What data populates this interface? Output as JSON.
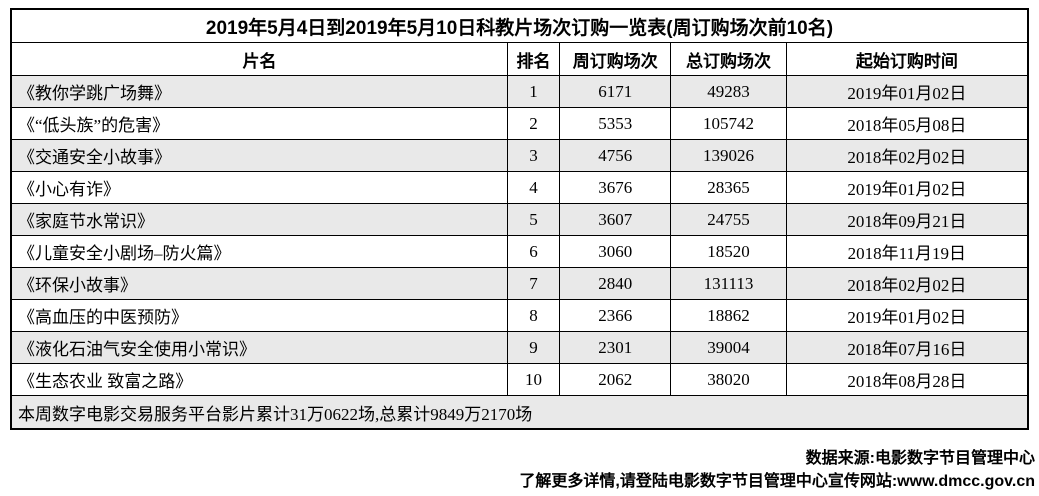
{
  "title": "2019年5月4日到2019年5月10日科教片场次订购一览表(周订购场次前10名)",
  "columns": [
    "片名",
    "排名",
    "周订购场次",
    "总订购场次",
    "起始订购时间"
  ],
  "rows": [
    {
      "name": "《教你学跳广场舞》",
      "rank": "1",
      "weekly": "6171",
      "total": "49283",
      "start": "2019年01月02日"
    },
    {
      "name": "《“低头族”的危害》",
      "rank": "2",
      "weekly": "5353",
      "total": "105742",
      "start": "2018年05月08日"
    },
    {
      "name": "《交通安全小故事》",
      "rank": "3",
      "weekly": "4756",
      "total": "139026",
      "start": "2018年02月02日"
    },
    {
      "name": "《小心有诈》",
      "rank": "4",
      "weekly": "3676",
      "total": "28365",
      "start": "2019年01月02日"
    },
    {
      "name": "《家庭节水常识》",
      "rank": "5",
      "weekly": "3607",
      "total": "24755",
      "start": "2018年09月21日"
    },
    {
      "name": "《儿童安全小剧场–防火篇》",
      "rank": "6",
      "weekly": "3060",
      "total": "18520",
      "start": "2018年11月19日"
    },
    {
      "name": "《环保小故事》",
      "rank": "7",
      "weekly": "2840",
      "total": "131113",
      "start": "2018年02月02日"
    },
    {
      "name": "《高血压的中医预防》",
      "rank": "8",
      "weekly": "2366",
      "total": "18862",
      "start": "2019年01月02日"
    },
    {
      "name": "《液化石油气安全使用小常识》",
      "rank": "9",
      "weekly": "2301",
      "total": "39004",
      "start": "2018年07月16日"
    },
    {
      "name": "《生态农业 致富之路》",
      "rank": "10",
      "weekly": "2062",
      "total": "38020",
      "start": "2018年08月28日"
    }
  ],
  "summary": "本周数字电影交易服务平台影片累计31万0622场,总累计9849万2170场",
  "source": {
    "line1": "数据来源:电影数字节目管理中心",
    "line2": "了解更多详情,请登陆电影数字节目管理中心宣传网站:www.dmcc.gov.cn"
  },
  "colors": {
    "stripe": "#e9e9e9",
    "border": "#000000",
    "text": "#000000",
    "background": "#ffffff"
  }
}
